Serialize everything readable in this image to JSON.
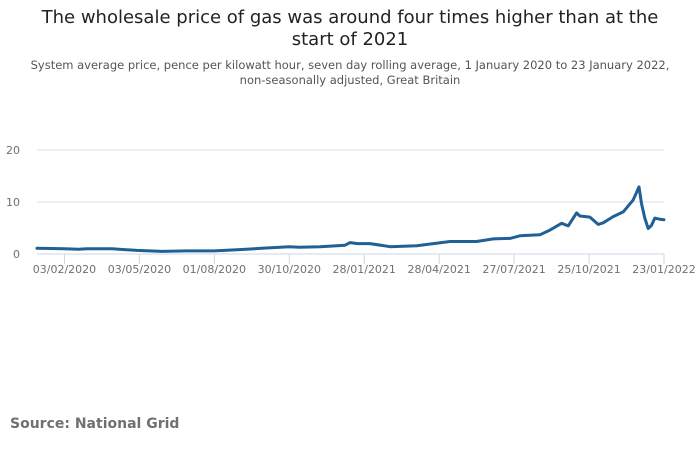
{
  "chart_data": {
    "type": "line",
    "title": "The wholesale price of gas was around four times higher than at the start of 2021",
    "subtitle": "System average price, pence per kilowatt hour, seven day rolling average, 1 January 2020 to 23 January 2022, non-seasonally adjusted, Great Britain",
    "xlabel": "",
    "ylabel": "",
    "ylim": [
      0,
      20
    ],
    "yticks": [
      0,
      10,
      20
    ],
    "x_unit": "days since 01/01/2020",
    "xlim": [
      0,
      753
    ],
    "xticks": [
      {
        "day": 33,
        "label": "03/02/2020"
      },
      {
        "day": 123,
        "label": "03/05/2020"
      },
      {
        "day": 213,
        "label": "01/08/2020"
      },
      {
        "day": 303,
        "label": "30/10/2020"
      },
      {
        "day": 393,
        "label": "28/01/2021"
      },
      {
        "day": 483,
        "label": "28/04/2021"
      },
      {
        "day": 573,
        "label": "27/07/2021"
      },
      {
        "day": 663,
        "label": "25/10/2021"
      },
      {
        "day": 753,
        "label": "23/01/2022"
      }
    ],
    "grid": true,
    "series": [
      {
        "name": "System average price",
        "color": "#206095",
        "x": [
          0,
          33,
          50,
          60,
          90,
          120,
          150,
          180,
          213,
          240,
          270,
          303,
          315,
          340,
          370,
          376,
          385,
          400,
          424,
          456,
          496,
          528,
          548,
          568,
          580,
          604,
          616,
          630,
          638,
          648,
          652,
          664,
          674,
          680,
          692,
          704,
          716,
          723,
          726,
          730,
          734,
          738,
          742,
          748,
          753
        ],
        "y": [
          1.1,
          1.0,
          0.9,
          1.0,
          1.0,
          0.7,
          0.5,
          0.6,
          0.6,
          0.8,
          1.1,
          1.4,
          1.3,
          1.4,
          1.7,
          2.2,
          2.0,
          2.0,
          1.4,
          1.6,
          2.4,
          2.4,
          2.9,
          3.0,
          3.5,
          3.7,
          4.6,
          5.9,
          5.4,
          7.9,
          7.3,
          7.1,
          5.7,
          6.0,
          7.2,
          8.1,
          10.4,
          12.9,
          9.7,
          6.9,
          4.9,
          5.5,
          6.9,
          6.7,
          6.6
        ]
      }
    ]
  },
  "source": "Source: National Grid"
}
